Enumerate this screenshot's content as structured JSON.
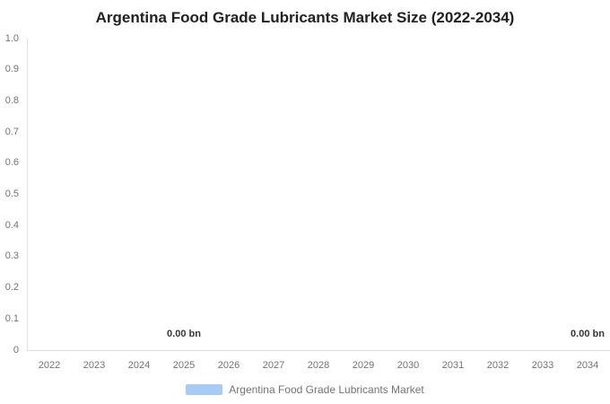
{
  "title": "Argentina Food Grade Lubricants Market Size (2022-2034)",
  "chart_data": {
    "type": "area",
    "title": "Argentina Food Grade Lubricants Market Size (2022-2034)",
    "categories": [
      "2022",
      "2023",
      "2024",
      "2025",
      "2026",
      "2027",
      "2028",
      "2029",
      "2030",
      "2031",
      "2032",
      "2033",
      "2034"
    ],
    "series": [
      {
        "name": "Argentina Food Grade Lubricants Market",
        "color": "#a6ccf5",
        "values": [
          0,
          0,
          0,
          0,
          0,
          0,
          0,
          0,
          0,
          0,
          0,
          0,
          0
        ]
      }
    ],
    "data_labels": [
      {
        "category": "2025",
        "text": "0.00 bn"
      },
      {
        "category": "2034",
        "text": "0.00 bn"
      }
    ],
    "xlabel": "",
    "ylabel": "",
    "ylim": [
      0,
      1.0
    ],
    "y_tick_labels": [
      "1.0",
      "0.9",
      "0.8",
      "0.7",
      "0.6",
      "0.5",
      "0.4",
      "0.3",
      "0.2",
      "0.1",
      "0"
    ],
    "grid": false,
    "legend_position": "bottom-center"
  },
  "legend": {
    "label": "Argentina Food Grade Lubricants Market",
    "swatch_color": "#a6ccf5"
  },
  "colors": {
    "title": "#212121",
    "axis_line": "#e0e0e0",
    "tick_label": "#737373",
    "data_label": "#383838",
    "legend_text": "#737373"
  }
}
